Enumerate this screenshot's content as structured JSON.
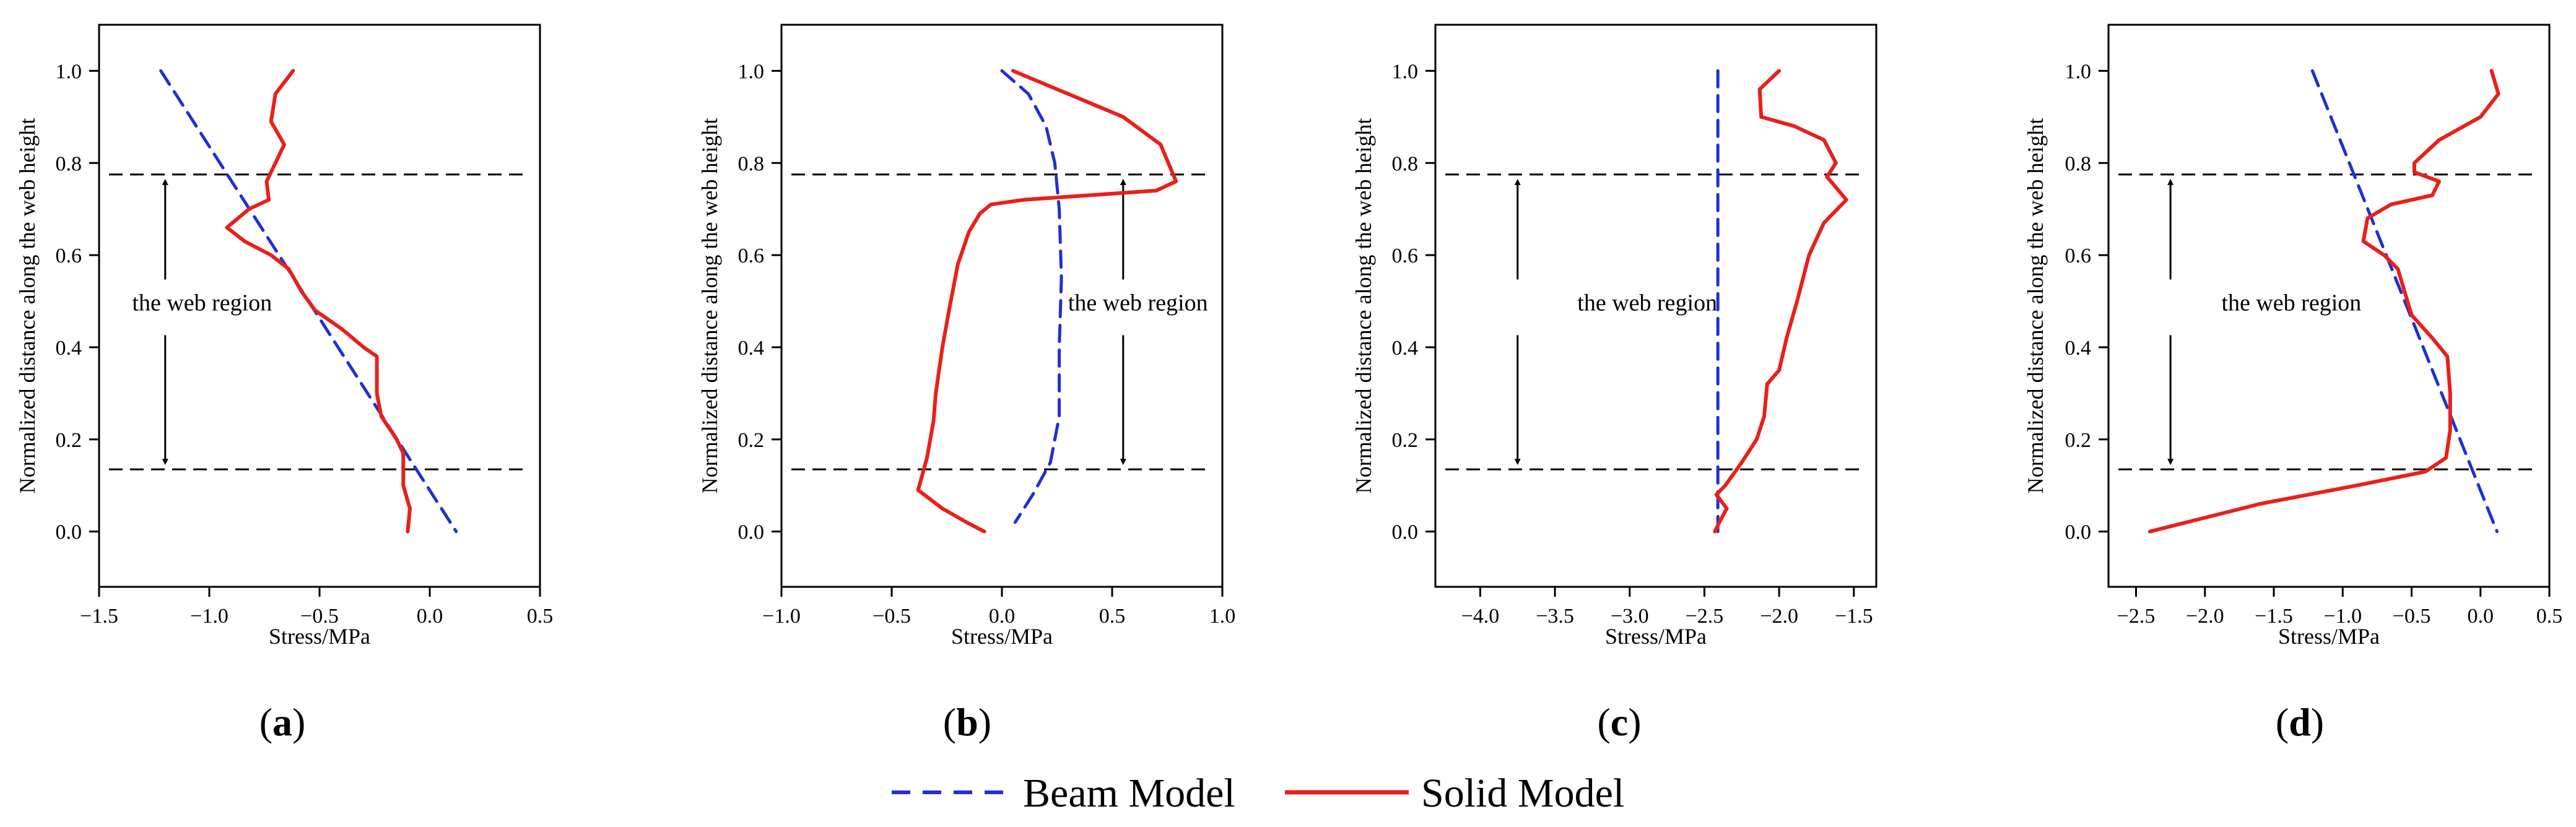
{
  "legend": {
    "beam": "Beam Model",
    "solid": "Solid Model"
  },
  "colors": {
    "beam": "#1f2fd6",
    "solid": "#e8201a",
    "axis": "#000000",
    "guide": "#000000"
  },
  "chart_data": [
    {
      "type": "line",
      "panel": "a",
      "label": "a",
      "xlabel": "Stress/MPa",
      "ylabel": "Normalized distance along the web height",
      "xlim": [
        -1.5,
        0.5
      ],
      "ylim": [
        -0.12,
        1.1
      ],
      "xticks": [
        -1.5,
        -1.0,
        -0.5,
        0.0,
        0.5
      ],
      "xtick_labels": [
        "−1.5",
        "−1.0",
        "−0.5",
        "0.0",
        "0.5"
      ],
      "yticks": [
        0,
        0.2,
        0.4,
        0.6,
        0.8,
        1.0
      ],
      "ytick_labels": [
        "0.0",
        "0.2",
        "0.4",
        "0.6",
        "0.8",
        "1.0"
      ],
      "hlines": [
        0.135,
        0.775
      ],
      "web_region_label": "the web region",
      "web_arrow_x": -1.2,
      "web_text_x": -1.35,
      "web_text_y": 0.48,
      "series": [
        {
          "name": "Beam Model",
          "style": "dashed",
          "points": [
            [
              -1.22,
              1.0
            ],
            [
              0.12,
              0.0
            ]
          ]
        },
        {
          "name": "Solid Model",
          "style": "solid",
          "points": [
            [
              -0.62,
              1.0
            ],
            [
              -0.7,
              0.95
            ],
            [
              -0.72,
              0.89
            ],
            [
              -0.66,
              0.84
            ],
            [
              -0.7,
              0.8
            ],
            [
              -0.74,
              0.76
            ],
            [
              -0.73,
              0.72
            ],
            [
              -0.82,
              0.7
            ],
            [
              -0.92,
              0.66
            ],
            [
              -0.84,
              0.63
            ],
            [
              -0.72,
              0.6
            ],
            [
              -0.64,
              0.57
            ],
            [
              -0.58,
              0.52
            ],
            [
              -0.52,
              0.48
            ],
            [
              -0.4,
              0.44
            ],
            [
              -0.3,
              0.4
            ],
            [
              -0.24,
              0.38
            ],
            [
              -0.24,
              0.3
            ],
            [
              -0.22,
              0.25
            ],
            [
              -0.15,
              0.2
            ],
            [
              -0.12,
              0.17
            ],
            [
              -0.12,
              0.1
            ],
            [
              -0.09,
              0.05
            ],
            [
              -0.1,
              0.0
            ]
          ]
        }
      ]
    },
    {
      "type": "line",
      "panel": "b",
      "label": "b",
      "xlabel": "Stress/MPa",
      "ylabel": "Normalized distance along the web height",
      "xlim": [
        -1.0,
        1.0
      ],
      "ylim": [
        -0.12,
        1.1
      ],
      "xticks": [
        -1.0,
        -0.5,
        0.0,
        0.5,
        1.0
      ],
      "xtick_labels": [
        "−1.0",
        "−0.5",
        "0.0",
        "0.5",
        "1.0"
      ],
      "yticks": [
        0,
        0.2,
        0.4,
        0.6,
        0.8,
        1.0
      ],
      "ytick_labels": [
        "0.0",
        "0.2",
        "0.4",
        "0.6",
        "0.8",
        "1.0"
      ],
      "hlines": [
        0.135,
        0.775
      ],
      "web_region_label": "the web region",
      "web_arrow_x": 0.55,
      "web_text_x": 0.3,
      "web_text_y": 0.48,
      "series": [
        {
          "name": "Beam Model",
          "style": "dashed",
          "points": [
            [
              0.0,
              1.0
            ],
            [
              0.12,
              0.95
            ],
            [
              0.2,
              0.88
            ],
            [
              0.24,
              0.8
            ],
            [
              0.26,
              0.7
            ],
            [
              0.27,
              0.55
            ],
            [
              0.26,
              0.4
            ],
            [
              0.26,
              0.25
            ],
            [
              0.22,
              0.15
            ],
            [
              0.14,
              0.08
            ],
            [
              0.06,
              0.02
            ]
          ]
        },
        {
          "name": "Solid Model",
          "style": "solid",
          "points": [
            [
              0.05,
              1.0
            ],
            [
              0.3,
              0.95
            ],
            [
              0.55,
              0.9
            ],
            [
              0.72,
              0.84
            ],
            [
              0.79,
              0.76
            ],
            [
              0.7,
              0.74
            ],
            [
              0.4,
              0.73
            ],
            [
              0.1,
              0.72
            ],
            [
              -0.05,
              0.71
            ],
            [
              -0.1,
              0.69
            ],
            [
              -0.15,
              0.65
            ],
            [
              -0.2,
              0.58
            ],
            [
              -0.24,
              0.48
            ],
            [
              -0.27,
              0.4
            ],
            [
              -0.3,
              0.3
            ],
            [
              -0.31,
              0.24
            ],
            [
              -0.34,
              0.16
            ],
            [
              -0.38,
              0.09
            ],
            [
              -0.27,
              0.05
            ],
            [
              -0.16,
              0.02
            ],
            [
              -0.08,
              0.0
            ]
          ]
        }
      ]
    },
    {
      "type": "line",
      "panel": "c",
      "label": "c",
      "xlabel": "Stress/MPa",
      "ylabel": "Normalized distance along the web height",
      "xlim": [
        -4.3,
        -1.35
      ],
      "ylim": [
        -0.12,
        1.1
      ],
      "xticks": [
        -4.0,
        -3.5,
        -3.0,
        -2.5,
        -2.0,
        -1.5
      ],
      "xtick_labels": [
        "−4.0",
        "−3.5",
        "−3.0",
        "−2.5",
        "−2.0",
        "−1.5"
      ],
      "yticks": [
        0,
        0.2,
        0.4,
        0.6,
        0.8,
        1.0
      ],
      "ytick_labels": [
        "0.0",
        "0.2",
        "0.4",
        "0.6",
        "0.8",
        "1.0"
      ],
      "hlines": [
        0.135,
        0.775
      ],
      "web_region_label": "the web region",
      "web_arrow_x": -3.75,
      "web_text_x": -3.35,
      "web_text_y": 0.48,
      "series": [
        {
          "name": "Beam Model",
          "style": "dashed",
          "points": [
            [
              -2.41,
              1.0
            ],
            [
              -2.41,
              0.0
            ]
          ]
        },
        {
          "name": "Solid Model",
          "style": "solid",
          "points": [
            [
              -2.0,
              1.0
            ],
            [
              -2.13,
              0.96
            ],
            [
              -2.12,
              0.9
            ],
            [
              -1.9,
              0.88
            ],
            [
              -1.7,
              0.85
            ],
            [
              -1.62,
              0.8
            ],
            [
              -1.68,
              0.77
            ],
            [
              -1.55,
              0.72
            ],
            [
              -1.7,
              0.67
            ],
            [
              -1.8,
              0.6
            ],
            [
              -1.88,
              0.5
            ],
            [
              -1.95,
              0.42
            ],
            [
              -2.0,
              0.35
            ],
            [
              -2.08,
              0.32
            ],
            [
              -2.1,
              0.25
            ],
            [
              -2.15,
              0.2
            ],
            [
              -2.25,
              0.15
            ],
            [
              -2.36,
              0.1
            ],
            [
              -2.42,
              0.08
            ],
            [
              -2.35,
              0.05
            ],
            [
              -2.4,
              0.02
            ],
            [
              -2.43,
              0.0
            ]
          ]
        }
      ]
    },
    {
      "type": "line",
      "panel": "d",
      "label": "d",
      "xlabel": "Stress/MPa",
      "ylabel": "Normalized distance along the web height",
      "xlim": [
        -2.7,
        0.5
      ],
      "ylim": [
        -0.12,
        1.1
      ],
      "xticks": [
        -2.5,
        -2.0,
        -1.5,
        -1.0,
        -0.5,
        0.0,
        0.5
      ],
      "xtick_labels": [
        "−2.5",
        "−2.0",
        "−1.5",
        "−1.0",
        "−0.5",
        "0.0",
        "0.5"
      ],
      "yticks": [
        0,
        0.2,
        0.4,
        0.6,
        0.8,
        1.0
      ],
      "ytick_labels": [
        "0.0",
        "0.2",
        "0.4",
        "0.6",
        "0.8",
        "1.0"
      ],
      "hlines": [
        0.135,
        0.775
      ],
      "web_region_label": "the web region",
      "web_arrow_x": -2.25,
      "web_text_x": -1.88,
      "web_text_y": 0.48,
      "series": [
        {
          "name": "Beam Model",
          "style": "dashed",
          "points": [
            [
              -1.22,
              1.0
            ],
            [
              0.12,
              0.0
            ]
          ]
        },
        {
          "name": "Solid Model",
          "style": "solid",
          "points": [
            [
              0.08,
              1.0
            ],
            [
              0.13,
              0.95
            ],
            [
              0.0,
              0.9
            ],
            [
              -0.3,
              0.85
            ],
            [
              -0.48,
              0.8
            ],
            [
              -0.48,
              0.78
            ],
            [
              -0.3,
              0.76
            ],
            [
              -0.35,
              0.73
            ],
            [
              -0.65,
              0.71
            ],
            [
              -0.82,
              0.68
            ],
            [
              -0.85,
              0.63
            ],
            [
              -0.7,
              0.6
            ],
            [
              -0.6,
              0.57
            ],
            [
              -0.55,
              0.52
            ],
            [
              -0.5,
              0.47
            ],
            [
              -0.35,
              0.42
            ],
            [
              -0.24,
              0.38
            ],
            [
              -0.22,
              0.3
            ],
            [
              -0.22,
              0.22
            ],
            [
              -0.25,
              0.16
            ],
            [
              -0.4,
              0.13
            ],
            [
              -0.9,
              0.1
            ],
            [
              -1.6,
              0.06
            ],
            [
              -2.4,
              0.0
            ]
          ]
        }
      ]
    }
  ]
}
